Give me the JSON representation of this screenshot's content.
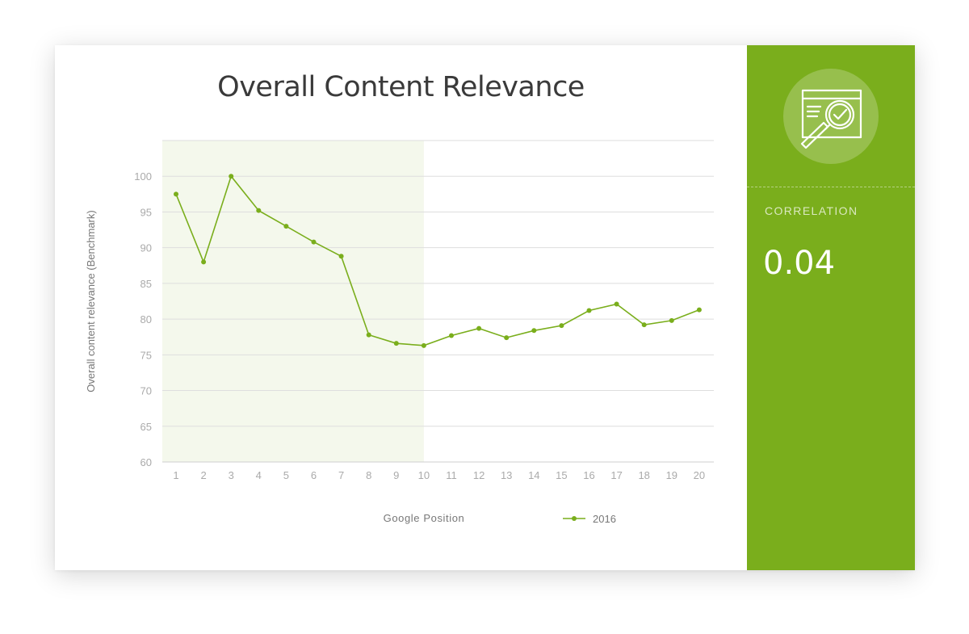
{
  "chart_data": {
    "type": "line",
    "title": "Overall Content Relevance",
    "xlabel": "Google Position",
    "ylabel": "Overall content relevance (Benchmark)",
    "x": [
      1,
      2,
      3,
      4,
      5,
      6,
      7,
      8,
      9,
      10,
      11,
      12,
      13,
      14,
      15,
      16,
      17,
      18,
      19,
      20
    ],
    "series": [
      {
        "name": "2016",
        "values": [
          97.5,
          88,
          100,
          95.2,
          93,
          90.8,
          88.8,
          77.8,
          76.6,
          76.3,
          77.7,
          78.7,
          77.4,
          78.4,
          79.1,
          81.2,
          82.1,
          79.2,
          79.8,
          81.3
        ]
      }
    ],
    "ylim": [
      60,
      105
    ],
    "yticks": [
      60,
      65,
      70,
      75,
      80,
      85,
      90,
      95,
      100
    ],
    "highlight_range_x": [
      1,
      10
    ],
    "grid": true,
    "legend": "bottom-right",
    "colors": {
      "series": "#7aae1c",
      "highlight": "#f4f8ec",
      "grid": "#dedede",
      "tick_text": "#aaaaaa",
      "label_text": "#777777"
    }
  },
  "sidebar": {
    "icon": "browser-magnifier-check-icon",
    "label": "CORRELATION",
    "value": "0.04",
    "color": "#7aae1c"
  }
}
